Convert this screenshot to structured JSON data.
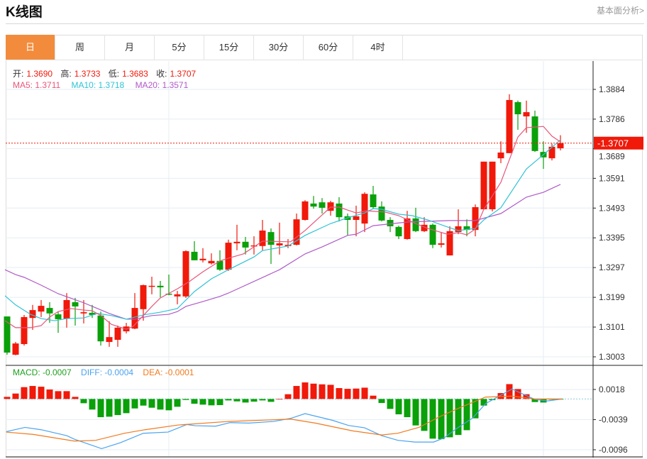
{
  "header": {
    "title": "K线图",
    "link": "基本面分析>"
  },
  "tabs": [
    "日",
    "周",
    "月",
    "5分",
    "15分",
    "30分",
    "60分",
    "4时"
  ],
  "active_tab": 0,
  "ohlc": {
    "open_label": "开:",
    "open": "1.3690",
    "high_label": "高:",
    "high": "1.3733",
    "low_label": "低:",
    "low": "1.3683",
    "close_label": "收:",
    "close": "1.3707"
  },
  "ma": {
    "ma5": "MA5: 1.3711",
    "ma10": "MA10: 1.3718",
    "ma20": "MA20: 1.3571"
  },
  "macd_legend": {
    "macd": "MACD: -0.0007",
    "diff": "DIFF: -0.0004",
    "dea": "DEA: -0.0001"
  },
  "current_price": "1.3707",
  "colors": {
    "up": "#f0190a",
    "down": "#0aa00a",
    "ma5": "#e8567a",
    "ma10": "#2fc3d6",
    "ma20": "#b05ac8",
    "diff": "#4aa3ef",
    "dea": "#f07a1e",
    "accent": "#f28c3c"
  },
  "chart_data": {
    "type": "candlestick",
    "price_ticks": [
      "1.3884",
      "1.3786",
      "1.3689",
      "1.3591",
      "1.3493",
      "1.3395",
      "1.3297",
      "1.3199",
      "1.3101",
      "1.3003"
    ],
    "macd_ticks": [
      "0.0018",
      "-0.0039",
      "-0.0096"
    ],
    "candles": [
      [
        1.3136,
        1.3136,
        1.301,
        1.3017
      ],
      [
        1.301,
        1.3052,
        1.3008,
        1.3047
      ],
      [
        1.3045,
        1.3141,
        1.304,
        1.3134
      ],
      [
        1.3131,
        1.3174,
        1.3092,
        1.3157
      ],
      [
        1.3152,
        1.319,
        1.3134,
        1.3171
      ],
      [
        1.3164,
        1.3183,
        1.3115,
        1.3146
      ],
      [
        1.3143,
        1.3152,
        1.3082,
        1.3127
      ],
      [
        1.3129,
        1.3213,
        1.3099,
        1.319
      ],
      [
        1.3183,
        1.3197,
        1.3106,
        1.3169
      ],
      [
        1.3146,
        1.319,
        1.3113,
        1.315
      ],
      [
        1.3148,
        1.3174,
        1.3131,
        1.3141
      ],
      [
        1.3139,
        1.3152,
        1.304,
        1.3054
      ],
      [
        1.3052,
        1.312,
        1.3036,
        1.3068
      ],
      [
        1.3059,
        1.3106,
        1.3036,
        1.3099
      ],
      [
        1.3087,
        1.3115,
        1.308,
        1.3103
      ],
      [
        1.3096,
        1.3213,
        1.3094,
        1.3164
      ],
      [
        1.316,
        1.3241,
        1.3122,
        1.3239
      ],
      [
        1.3234,
        1.3267,
        1.3209,
        1.3237
      ],
      [
        1.3237,
        1.3253,
        1.3199,
        1.3232
      ],
      [
        1.3211,
        1.3274,
        1.3206,
        1.3209
      ],
      [
        1.3202,
        1.322,
        1.3176,
        1.3209
      ],
      [
        1.3202,
        1.3354,
        1.3197,
        1.3351
      ],
      [
        1.3349,
        1.3384,
        1.3321,
        1.3321
      ],
      [
        1.3321,
        1.3361,
        1.3314,
        1.3326
      ],
      [
        1.3311,
        1.3344,
        1.3307,
        1.3319
      ],
      [
        1.3319,
        1.3354,
        1.3286,
        1.329
      ],
      [
        1.329,
        1.3389,
        1.3286,
        1.3379
      ],
      [
        1.3377,
        1.3438,
        1.3354,
        1.3382
      ],
      [
        1.3382,
        1.3398,
        1.334,
        1.3363
      ],
      [
        1.3368,
        1.34,
        1.334,
        1.337
      ],
      [
        1.3368,
        1.3454,
        1.3354,
        1.3419
      ],
      [
        1.3414,
        1.3426,
        1.3309,
        1.3372
      ],
      [
        1.337,
        1.3445,
        1.334,
        1.3377
      ],
      [
        1.3368,
        1.3391,
        1.3361,
        1.3372
      ],
      [
        1.3372,
        1.3475,
        1.337,
        1.3456
      ],
      [
        1.3454,
        1.3519,
        1.3452,
        1.3515
      ],
      [
        1.3508,
        1.3533,
        1.3491,
        1.3498
      ],
      [
        1.3512,
        1.3526,
        1.3475,
        1.3494
      ],
      [
        1.3484,
        1.3517,
        1.3468,
        1.3512
      ],
      [
        1.3508,
        1.3529,
        1.3449,
        1.3463
      ],
      [
        1.3466,
        1.3475,
        1.3403,
        1.3454
      ],
      [
        1.3454,
        1.3501,
        1.34,
        1.3466
      ],
      [
        1.3442,
        1.3545,
        1.3414,
        1.354
      ],
      [
        1.3538,
        1.3566,
        1.3491,
        1.3496
      ],
      [
        1.3498,
        1.3515,
        1.3449,
        1.3452
      ],
      [
        1.3454,
        1.3463,
        1.3414,
        1.3433
      ],
      [
        1.3431,
        1.3435,
        1.3391,
        1.34
      ],
      [
        1.3391,
        1.3484,
        1.3389,
        1.3459
      ],
      [
        1.3459,
        1.3494,
        1.3414,
        1.3417
      ],
      [
        1.3417,
        1.3463,
        1.3414,
        1.3438
      ],
      [
        1.3438,
        1.3442,
        1.3361,
        1.3372
      ],
      [
        1.3372,
        1.3412,
        1.3363,
        1.3377
      ],
      [
        1.3337,
        1.3433,
        1.3337,
        1.3417
      ],
      [
        1.3414,
        1.3489,
        1.3407,
        1.3433
      ],
      [
        1.3433,
        1.3456,
        1.34,
        1.3421
      ],
      [
        1.3421,
        1.3505,
        1.34,
        1.3496
      ],
      [
        1.3489,
        1.3646,
        1.3489,
        1.3646
      ],
      [
        1.3489,
        1.3646,
        1.3482,
        1.3646
      ],
      [
        1.3657,
        1.3713,
        1.3641,
        1.3676
      ],
      [
        1.3674,
        1.3868,
        1.3674,
        1.3849
      ],
      [
        1.3842,
        1.3847,
        1.3751,
        1.3802
      ],
      [
        1.3795,
        1.3847,
        1.3741,
        1.3809
      ],
      [
        1.3795,
        1.3814,
        1.3678,
        1.3681
      ],
      [
        1.3678,
        1.3713,
        1.3622,
        1.366
      ],
      [
        1.3657,
        1.3706,
        1.365,
        1.3695
      ],
      [
        1.369,
        1.3733,
        1.3683,
        1.3707
      ]
    ],
    "ma5": [
      [
        -0.25,
        1.3122
      ],
      [
        1,
        1.3099
      ],
      [
        2.75,
        1.3099
      ],
      [
        4,
        1.3106
      ],
      [
        5,
        1.3134
      ],
      [
        6,
        1.3152
      ],
      [
        7.5,
        1.3162
      ],
      [
        9,
        1.3157
      ],
      [
        10,
        1.3155
      ],
      [
        11,
        1.3139
      ],
      [
        12.25,
        1.311
      ],
      [
        14,
        1.3094
      ],
      [
        14.8,
        1.3103
      ],
      [
        17,
        1.3169
      ],
      [
        18,
        1.3197
      ],
      [
        20,
        1.3227
      ],
      [
        21.4,
        1.3251
      ],
      [
        23,
        1.3283
      ],
      [
        25,
        1.3319
      ],
      [
        26,
        1.3328
      ],
      [
        27.75,
        1.3342
      ],
      [
        30,
        1.3384
      ],
      [
        33.3,
        1.3382
      ],
      [
        35,
        1.3419
      ],
      [
        38,
        1.3496
      ],
      [
        39,
        1.3496
      ],
      [
        41,
        1.3477
      ],
      [
        42.25,
        1.3484
      ],
      [
        44.4,
        1.348
      ],
      [
        46,
        1.3468
      ],
      [
        48,
        1.3442
      ],
      [
        49.4,
        1.3426
      ],
      [
        51.7,
        1.3407
      ],
      [
        53,
        1.3412
      ],
      [
        54,
        1.3405
      ],
      [
        55,
        1.3424
      ],
      [
        56,
        1.3489
      ],
      [
        58,
        1.3578
      ],
      [
        60,
        1.3727
      ],
      [
        61,
        1.3758
      ],
      [
        63,
        1.3762
      ],
      [
        64,
        1.373
      ],
      [
        65,
        1.3711
      ]
    ],
    "ma10": [
      [
        -0.25,
        1.3204
      ],
      [
        1,
        1.3174
      ],
      [
        2.75,
        1.3143
      ],
      [
        4,
        1.3129
      ],
      [
        5.6,
        1.3122
      ],
      [
        7,
        1.3129
      ],
      [
        9,
        1.3131
      ],
      [
        10.6,
        1.3146
      ],
      [
        12.25,
        1.3139
      ],
      [
        14,
        1.3127
      ],
      [
        16,
        1.3141
      ],
      [
        18,
        1.315
      ],
      [
        20,
        1.3162
      ],
      [
        22,
        1.3218
      ],
      [
        24,
        1.326
      ],
      [
        26,
        1.329
      ],
      [
        29,
        1.3332
      ],
      [
        30,
        1.3353
      ],
      [
        33,
        1.3368
      ],
      [
        35,
        1.3403
      ],
      [
        38,
        1.3442
      ],
      [
        40,
        1.3461
      ],
      [
        42,
        1.3477
      ],
      [
        43,
        1.3491
      ],
      [
        44,
        1.3489
      ],
      [
        46,
        1.3473
      ],
      [
        47.6,
        1.3468
      ],
      [
        49.4,
        1.3454
      ],
      [
        51.7,
        1.3431
      ],
      [
        53,
        1.3419
      ],
      [
        55,
        1.3426
      ],
      [
        56,
        1.3454
      ],
      [
        58,
        1.3494
      ],
      [
        61,
        1.3622
      ],
      [
        63,
        1.3669
      ],
      [
        65,
        1.3718
      ]
    ],
    "ma20": [
      [
        -0.25,
        1.329
      ],
      [
        1,
        1.3274
      ],
      [
        2,
        1.3265
      ],
      [
        4,
        1.3239
      ],
      [
        6,
        1.3211
      ],
      [
        9,
        1.3181
      ],
      [
        12,
        1.3146
      ],
      [
        14,
        1.3127
      ],
      [
        15,
        1.3127
      ],
      [
        17,
        1.3139
      ],
      [
        19,
        1.3143
      ],
      [
        20,
        1.3152
      ],
      [
        21,
        1.3169
      ],
      [
        23,
        1.3185
      ],
      [
        25,
        1.3202
      ],
      [
        26,
        1.3213
      ],
      [
        32,
        1.329
      ],
      [
        35,
        1.3342
      ],
      [
        37,
        1.3365
      ],
      [
        40,
        1.3403
      ],
      [
        41,
        1.3407
      ],
      [
        43,
        1.3435
      ],
      [
        47,
        1.3447
      ],
      [
        49,
        1.3449
      ],
      [
        52,
        1.3452
      ],
      [
        55,
        1.3452
      ],
      [
        58,
        1.3475
      ],
      [
        61,
        1.3529
      ],
      [
        63,
        1.3545
      ],
      [
        65,
        1.3571
      ]
    ],
    "macd_hist": [
      0.0004,
      0.00103,
      0.00224,
      0.00246,
      0.00232,
      0.00179,
      0.00148,
      0.00148,
      0.0004,
      -0.0008,
      -0.002,
      -0.00344,
      -0.00335,
      -0.00304,
      -0.00268,
      -0.00179,
      -0.00125,
      -0.00165,
      -0.002,
      -0.00214,
      -0.00147,
      -0.00018,
      -0.0009,
      -0.00107,
      -0.0012,
      -0.00116,
      -0.00027,
      -0.00045,
      -0.00067,
      -0.0005,
      -0.00027,
      -0.00054,
      0,
      0.0009,
      0.00246,
      0.00313,
      0.0029,
      0.00277,
      0.00268,
      0.00206,
      0.00192,
      0.00197,
      0.00214,
      0.00063,
      -0.00076,
      -0.00188,
      -0.0029,
      -0.00344,
      -0.005,
      -0.00603,
      -0.0075,
      -0.0076,
      -0.00724,
      -0.0068,
      -0.0059,
      -0.00366,
      -0.00125,
      -0.00022,
      0.00112,
      0.00281,
      0.00188,
      0.0009,
      -0.00058,
      -0.00067,
      -0.00013,
      -0.0001
    ],
    "diff": [
      [
        -0.1,
        -0.00617
      ],
      [
        2.1,
        -0.00537
      ],
      [
        4,
        -0.00581
      ],
      [
        7,
        -0.00693
      ],
      [
        7.9,
        -0.0076
      ],
      [
        11.1,
        -0.00939
      ],
      [
        13.3,
        -0.00827
      ],
      [
        16,
        -0.00648
      ],
      [
        18.9,
        -0.00626
      ],
      [
        21.1,
        -0.00483
      ],
      [
        22.1,
        -0.00505
      ],
      [
        24.5,
        -0.00514
      ],
      [
        26.2,
        -0.00447
      ],
      [
        28.4,
        -0.00456
      ],
      [
        31.3,
        -0.00425
      ],
      [
        33.3,
        -0.00367
      ],
      [
        35,
        -0.00277
      ],
      [
        38.2,
        -0.00402
      ],
      [
        40.1,
        -0.005
      ],
      [
        42,
        -0.00545
      ],
      [
        44,
        -0.00693
      ],
      [
        45.9,
        -0.00782
      ],
      [
        47.9,
        -0.00814
      ],
      [
        50.1,
        -0.00814
      ],
      [
        51.3,
        -0.00738
      ],
      [
        52.8,
        -0.00559
      ],
      [
        54.7,
        -0.00358
      ],
      [
        56.2,
        -0.00089
      ],
      [
        59.3,
        0.00188
      ],
      [
        62,
        -9e-05
      ],
      [
        63.5,
        -0.00036
      ],
      [
        65.2,
        0
      ]
    ],
    "dea": [
      [
        -0.1,
        -0.00626
      ],
      [
        3.1,
        -0.0067
      ],
      [
        7.9,
        -0.00796
      ],
      [
        10.4,
        -0.00782
      ],
      [
        13.8,
        -0.00648
      ],
      [
        16.2,
        -0.00581
      ],
      [
        20.1,
        -0.00492
      ],
      [
        26,
        -0.00425
      ],
      [
        33.3,
        -0.0038
      ],
      [
        36.2,
        -0.00456
      ],
      [
        40.6,
        -0.00603
      ],
      [
        44,
        -0.0068
      ],
      [
        45.9,
        -0.00648
      ],
      [
        48.4,
        -0.00536
      ],
      [
        50.8,
        -0.00335
      ],
      [
        53.3,
        -0.00156
      ],
      [
        56.2,
        0.00036
      ],
      [
        59.3,
        0.00054
      ],
      [
        62,
        0
      ],
      [
        65.2,
        0
      ]
    ]
  }
}
